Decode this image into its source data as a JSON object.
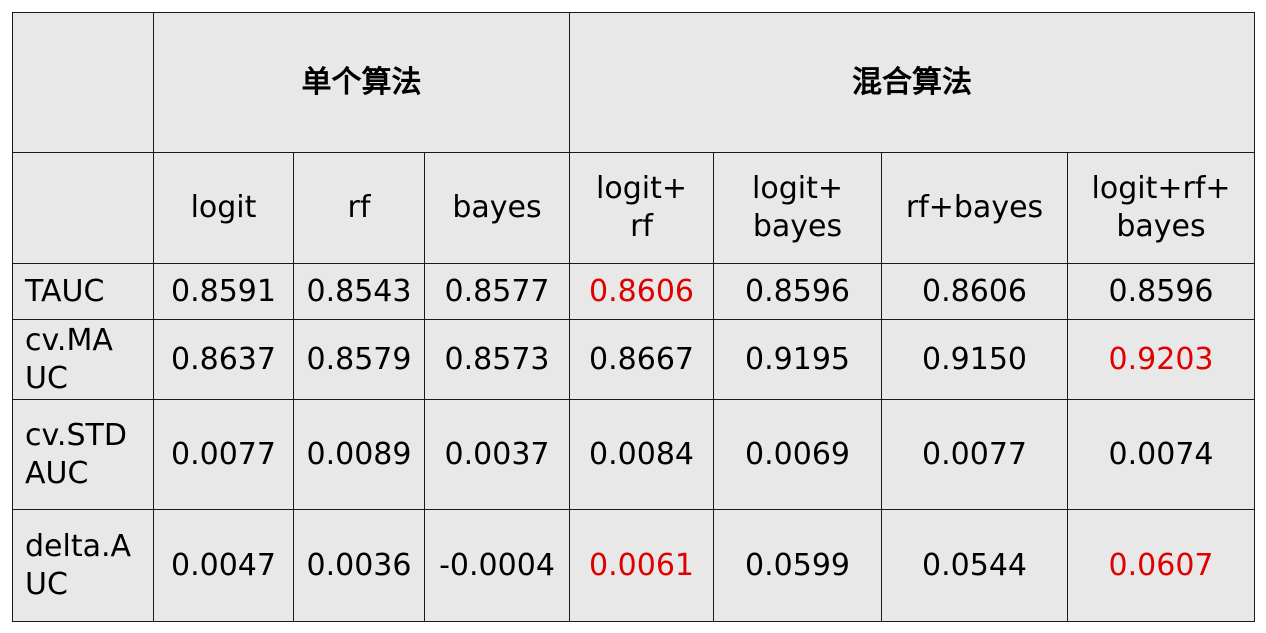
{
  "table": {
    "corner": "",
    "group_headers": [
      "单个算法",
      "混合算法"
    ],
    "columns": [
      "logit",
      "rf",
      "bayes",
      "logit+\nrf",
      "logit+\nbayes",
      "rf+bayes",
      "logit+rf+\nbayes"
    ],
    "rows": [
      {
        "label": "TAUC",
        "values": [
          "0.8591",
          "0.8543",
          "0.8577",
          "0.8606",
          "0.8596",
          "0.8606",
          "0.8596"
        ],
        "highlight": [
          false,
          false,
          false,
          true,
          false,
          false,
          false
        ]
      },
      {
        "label": "cv.MA\nUC",
        "values": [
          "0.8637",
          "0.8579",
          "0.8573",
          "0.8667",
          "0.9195",
          "0.9150",
          "0.9203"
        ],
        "highlight": [
          false,
          false,
          false,
          false,
          false,
          false,
          true
        ]
      },
      {
        "label": "cv.STD\nAUC",
        "values": [
          "0.0077",
          "0.0089",
          "0.0037",
          "0.0084",
          "0.0069",
          "0.0077",
          "0.0074"
        ],
        "highlight": [
          false,
          false,
          false,
          false,
          false,
          false,
          false
        ]
      },
      {
        "label": "delta.A\nUC",
        "values": [
          "0.0047",
          "0.0036",
          "-0.0004",
          "0.0061",
          "0.0599",
          "0.0544",
          "0.0607"
        ],
        "highlight": [
          false,
          false,
          false,
          true,
          false,
          false,
          true
        ]
      }
    ]
  },
  "colors": {
    "highlight": "#e00000",
    "text": "#000000",
    "cell_background": "#e8e8e8",
    "border": "#1a1a1a"
  }
}
